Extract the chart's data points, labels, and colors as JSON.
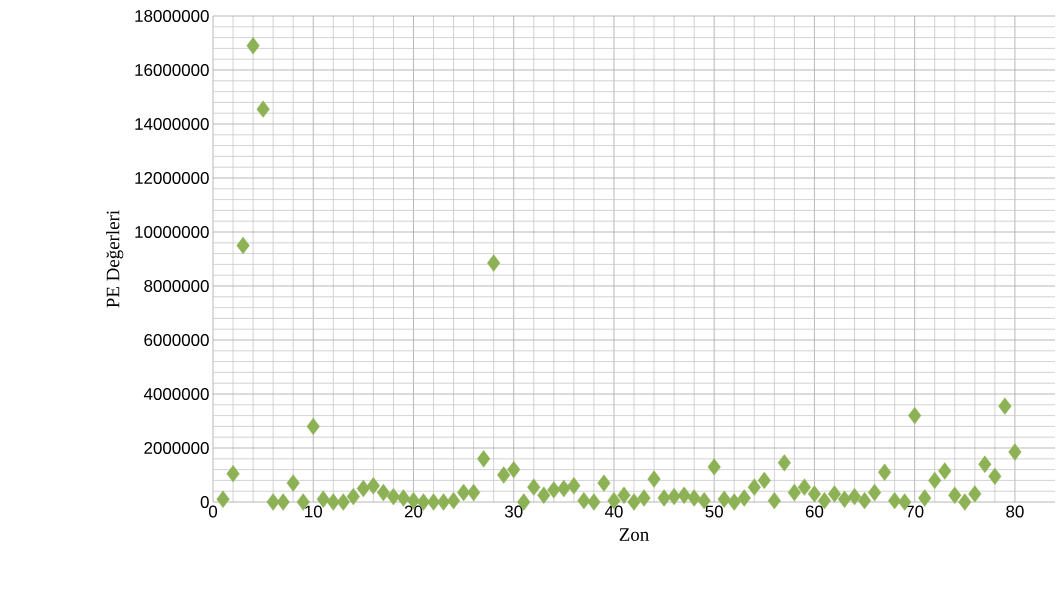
{
  "chart_data": {
    "type": "scatter",
    "xlabel": "Zon",
    "ylabel": "PE Değerleri",
    "x": [
      1,
      2,
      3,
      4,
      5,
      6,
      7,
      8,
      9,
      10,
      11,
      12,
      13,
      14,
      15,
      16,
      17,
      18,
      19,
      20,
      21,
      22,
      23,
      24,
      25,
      26,
      27,
      28,
      29,
      30,
      31,
      32,
      33,
      34,
      35,
      36,
      37,
      38,
      39,
      40,
      41,
      42,
      43,
      44,
      45,
      46,
      47,
      48,
      49,
      50,
      51,
      52,
      53,
      54,
      55,
      56,
      57,
      58,
      59,
      60,
      61,
      62,
      63,
      64,
      65,
      66,
      67,
      68,
      69,
      70,
      71,
      72,
      73,
      74,
      75,
      76,
      77,
      78,
      79,
      80
    ],
    "values": [
      100000,
      1050000,
      9500000,
      16900000,
      14550000,
      0,
      0,
      700000,
      0,
      2800000,
      100000,
      0,
      0,
      200000,
      500000,
      600000,
      350000,
      200000,
      150000,
      50000,
      0,
      0,
      0,
      50000,
      350000,
      350000,
      1600000,
      8850000,
      1000000,
      1200000,
      0,
      550000,
      250000,
      450000,
      500000,
      600000,
      50000,
      0,
      700000,
      50000,
      250000,
      0,
      150000,
      850000,
      150000,
      200000,
      250000,
      150000,
      50000,
      1300000,
      100000,
      0,
      150000,
      550000,
      800000,
      50000,
      1450000,
      350000,
      550000,
      300000,
      50000,
      300000,
      100000,
      200000,
      50000,
      350000,
      1100000,
      50000,
      0,
      3200000,
      150000,
      800000,
      1150000,
      250000,
      0,
      300000,
      1400000,
      950000,
      3550000,
      1850000
    ],
    "color": "#8db255",
    "marker": "diamond",
    "grid": true,
    "xlim": [
      0,
      84
    ],
    "xticks": [
      0,
      10,
      20,
      30,
      40,
      50,
      60,
      70,
      80
    ],
    "ylim": [
      0,
      18000000
    ],
    "yticks": [
      0,
      2000000,
      4000000,
      6000000,
      8000000,
      10000000,
      12000000,
      14000000,
      16000000,
      18000000
    ]
  }
}
